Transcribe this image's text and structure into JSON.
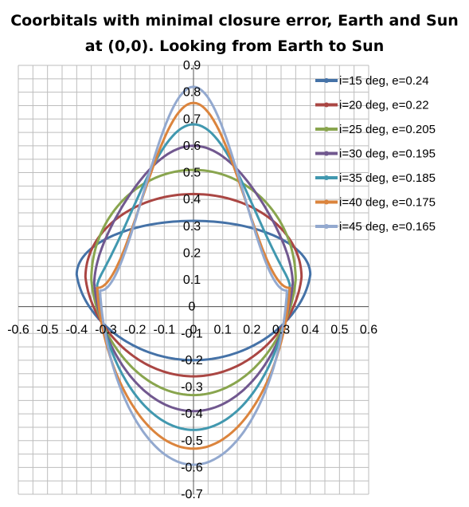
{
  "chart_data": {
    "type": "line",
    "title_line1": "Coorbitals with minimal closure error, Earth and Sun",
    "title_line2": "at (0,0). Looking from Earth to Sun",
    "xlim": [
      -0.6,
      0.6
    ],
    "ylim": [
      -0.7,
      0.9
    ],
    "x_ticks": [
      "-0.6",
      "-0.5",
      "-0.4",
      "-0.3",
      "-0.2",
      "-0.1",
      "0",
      "0.1",
      "0.2",
      "0.3",
      "0.4",
      "0.5",
      "0.6"
    ],
    "y_ticks": [
      "-0.7",
      "-0.6",
      "-0.5",
      "-0.4",
      "-0.3",
      "-0.2",
      "-0.1",
      "0",
      "0.1",
      "0.2",
      "0.3",
      "0.4",
      "0.5",
      "0.6",
      "0.7",
      "0.8",
      "0.9"
    ],
    "grid": true,
    "legend_position": "top-right",
    "series": [
      {
        "name": "i=15 deg, e=0.24",
        "color": "#4572a7",
        "w": 0.4,
        "ytop": 0.32,
        "ybot": -0.2,
        "ymid": 0.12,
        "peak": 0.0
      },
      {
        "name": "i=20 deg, e=0.22",
        "color": "#aa4643",
        "w": 0.37,
        "ytop": 0.42,
        "ybot": -0.26,
        "ymid": 0.11,
        "peak": 0.0
      },
      {
        "name": "i=25 deg, e=0.205",
        "color": "#89a54e",
        "w": 0.35,
        "ytop": 0.51,
        "ybot": -0.33,
        "ymid": 0.1,
        "peak": 0.0
      },
      {
        "name": "i=30 deg, e=0.195",
        "color": "#71588f",
        "w": 0.34,
        "ytop": 0.6,
        "ybot": -0.39,
        "ymid": 0.09,
        "peak": 0.3
      },
      {
        "name": "i=35 deg, e=0.185",
        "color": "#4198af",
        "w": 0.33,
        "ytop": 0.68,
        "ybot": -0.46,
        "ymid": 0.08,
        "peak": 0.7
      },
      {
        "name": "i=40 deg, e=0.175",
        "color": "#db843d",
        "w": 0.33,
        "ytop": 0.76,
        "ybot": -0.53,
        "ymid": 0.07,
        "peak": 1.0
      },
      {
        "name": "i=45 deg, e=0.165",
        "color": "#93a9cf",
        "w": 0.32,
        "ytop": 0.82,
        "ybot": -0.59,
        "ymid": 0.06,
        "peak": 1.0
      }
    ]
  }
}
